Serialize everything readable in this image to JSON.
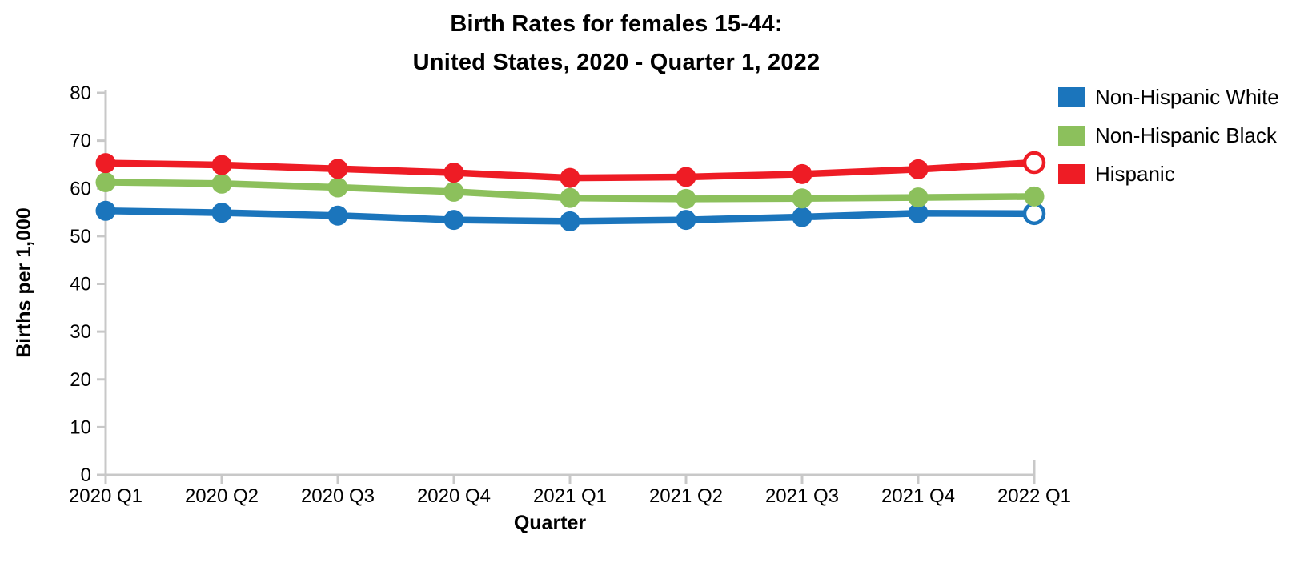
{
  "title": {
    "line1": "Birth Rates for females 15-44:",
    "line2": "United States, 2020 - Quarter 1, 2022"
  },
  "chart_data": {
    "type": "line",
    "title": "Birth Rates for females 15-44: United States, 2020 - Quarter 1, 2022",
    "xlabel": "Quarter",
    "ylabel": "Births per 1,000",
    "categories": [
      "2020 Q1",
      "2020 Q2",
      "2020 Q3",
      "2020 Q4",
      "2021 Q1",
      "2021 Q2",
      "2021 Q3",
      "2021 Q4",
      "2022 Q1"
    ],
    "series": [
      {
        "name": "Non-Hispanic White",
        "color": "#1B75BC",
        "values": [
          55.3,
          54.9,
          54.3,
          53.4,
          53.1,
          53.4,
          54.0,
          54.8,
          54.7
        ],
        "last_point_open": true
      },
      {
        "name": "Non-Hispanic Black",
        "color": "#8CC05C",
        "values": [
          61.3,
          61.0,
          60.2,
          59.3,
          58.0,
          57.8,
          57.9,
          58.1,
          58.3
        ],
        "last_point_open": false
      },
      {
        "name": "Hispanic",
        "color": "#EE1C25",
        "values": [
          65.3,
          64.9,
          64.1,
          63.3,
          62.2,
          62.4,
          63.0,
          64.0,
          65.4
        ],
        "last_point_open": true
      }
    ],
    "ylim": [
      0,
      80
    ],
    "yticks": [
      0,
      10,
      20,
      30,
      40,
      50,
      60,
      70,
      80
    ],
    "grid": false,
    "legend_position": "right",
    "axis_color": "#C8C8C8",
    "text_color": "#000000"
  }
}
